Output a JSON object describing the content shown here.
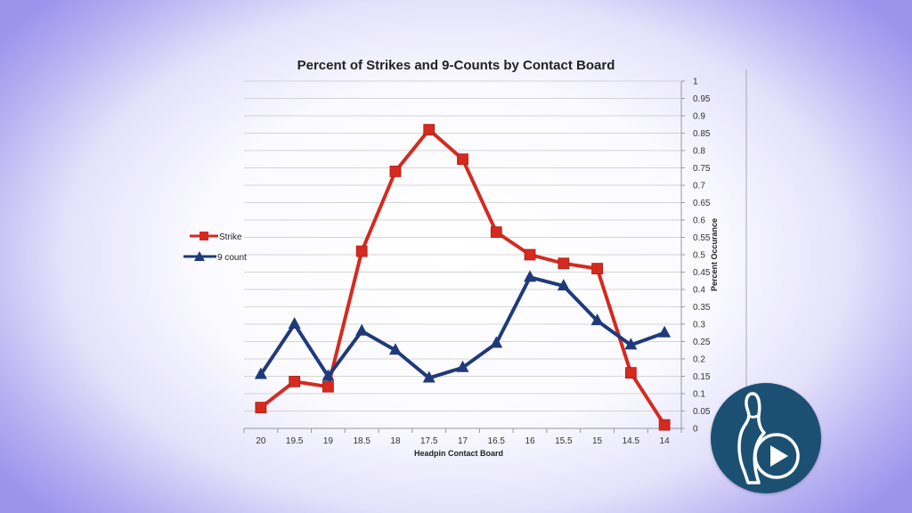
{
  "chart_data": {
    "type": "line",
    "title": "Percent of Strikes and 9-Counts by Contact Board",
    "xlabel": "Headpin Contact Board",
    "ylabel": "Percent Occurance",
    "categories": [
      "20",
      "19.5",
      "19",
      "18.5",
      "18",
      "17.5",
      "17",
      "16.5",
      "16",
      "15.5",
      "15",
      "14.5",
      "14"
    ],
    "ylim": [
      0,
      1
    ],
    "yticks": [
      "0",
      "0.05",
      "0.1",
      "0.15",
      "0.2",
      "0.25",
      "0.3",
      "0.35",
      "0.4",
      "0.45",
      "0.5",
      "0.55",
      "0.6",
      "0.65",
      "0.7",
      "0.75",
      "0.8",
      "0.85",
      "0.9",
      "0.95",
      "1"
    ],
    "grid": true,
    "legend_position": "left",
    "series": [
      {
        "name": "Strike",
        "color": "#d42a20",
        "marker": "square",
        "values": [
          0.06,
          0.135,
          0.12,
          0.51,
          0.74,
          0.86,
          0.775,
          0.565,
          0.5,
          0.475,
          0.46,
          0.16,
          0.01
        ]
      },
      {
        "name": "9 count",
        "color": "#1f3a7a",
        "marker": "triangle",
        "values": [
          0.155,
          0.3,
          0.15,
          0.28,
          0.225,
          0.145,
          0.175,
          0.245,
          0.435,
          0.41,
          0.31,
          0.24,
          0.275
        ]
      }
    ]
  },
  "badge": {
    "icon": "bowling-pin-play-icon",
    "color": "#1c5073"
  }
}
